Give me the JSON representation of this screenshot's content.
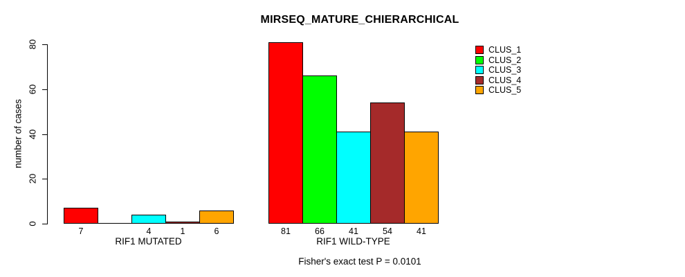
{
  "chart_data": {
    "type": "bar",
    "title": "MIRSEQ_MATURE_CHIERARCHICAL",
    "ylabel": "number of cases",
    "xlabel": "",
    "ylim": [
      0,
      80
    ],
    "yticks": [
      0,
      20,
      40,
      60,
      80
    ],
    "grid": false,
    "legend_position": "top-right",
    "categories": [
      "RIF1 MUTATED",
      "RIF1 WILD-TYPE"
    ],
    "series": [
      {
        "name": "CLUS_1",
        "color": "#ff0000",
        "values": [
          7,
          81
        ]
      },
      {
        "name": "CLUS_2",
        "color": "#00ff00",
        "values": [
          0,
          66
        ]
      },
      {
        "name": "CLUS_3",
        "color": "#00ffff",
        "values": [
          4,
          41
        ]
      },
      {
        "name": "CLUS_4",
        "color": "#a52a2a",
        "values": [
          1,
          54
        ]
      },
      {
        "name": "CLUS_5",
        "color": "#ffa500",
        "values": [
          6,
          41
        ]
      }
    ],
    "bar_value_labels": [
      [
        "7",
        "",
        "4",
        "1",
        "6"
      ],
      [
        "81",
        "66",
        "41",
        "54",
        "41"
      ]
    ],
    "annotation": "Fisher's exact test P = 0.0101"
  },
  "colors": {
    "background": "#ffffff",
    "axis": "#000000",
    "text": "#000000"
  }
}
